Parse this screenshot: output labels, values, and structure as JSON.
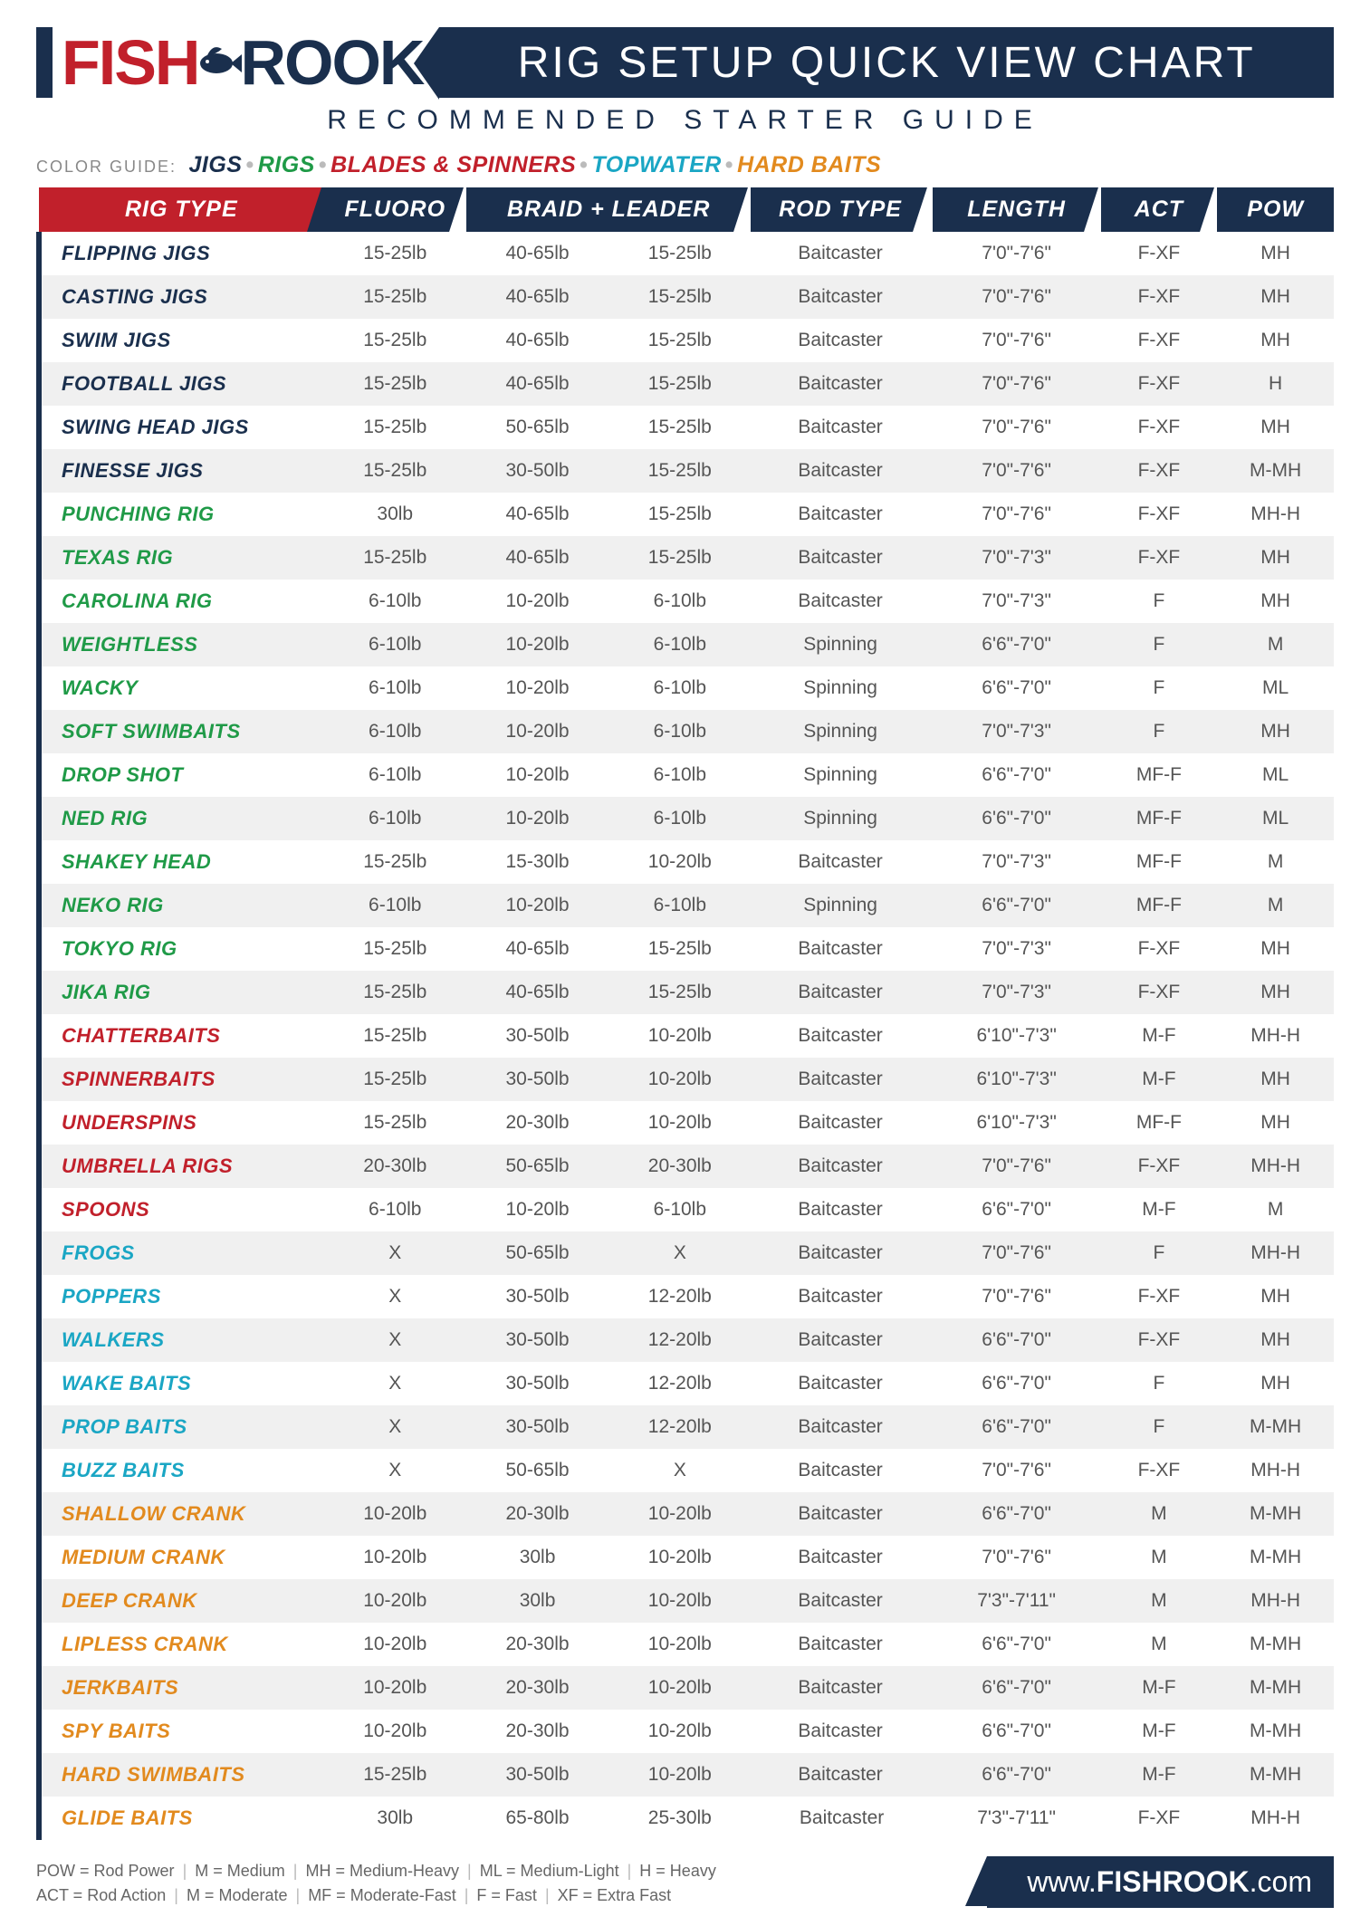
{
  "brand": {
    "part1": "FISH",
    "part2": "ROOK"
  },
  "title": "RIG SETUP QUICK VIEW CHART",
  "subtitle": "RECOMMENDED STARTER GUIDE",
  "colorGuide": {
    "label": "COLOR GUIDE:",
    "items": [
      {
        "text": "JIGS",
        "color": "#1a2f4d"
      },
      {
        "text": "RIGS",
        "color": "#1f9a47"
      },
      {
        "text": "BLADES & SPINNERS",
        "color": "#c1202b"
      },
      {
        "text": "TOPWATER",
        "color": "#1aa6c4"
      },
      {
        "text": "HARD BAITS",
        "color": "#e28a1e"
      }
    ]
  },
  "categoryColors": {
    "jigs": "#1a2f4d",
    "rigs": "#1f9a47",
    "blades": "#c1202b",
    "topwater": "#1aa6c4",
    "hardbaits": "#e28a1e"
  },
  "columns": [
    {
      "key": "name",
      "label": "RIG TYPE",
      "width": "20%"
    },
    {
      "key": "fluoro",
      "label": "FLUORO",
      "width": "11%"
    },
    {
      "key": "braid",
      "label": "BRAID + LEADER",
      "width": "22%",
      "span": 2
    },
    {
      "key": "rod",
      "label": "ROD TYPE",
      "width": "13%"
    },
    {
      "key": "len",
      "label": "LENGTH",
      "width": "12%"
    },
    {
      "key": "act",
      "label": "ACT",
      "width": "9%"
    },
    {
      "key": "pow",
      "label": "POW",
      "width": "9%"
    }
  ],
  "rows": [
    {
      "cat": "jigs",
      "name": "FLIPPING JIGS",
      "fluoro": "15-25lb",
      "braid": "40-65lb",
      "leader": "15-25lb",
      "rod": "Baitcaster",
      "len": "7'0\"-7'6\"",
      "act": "F-XF",
      "pow": "MH"
    },
    {
      "cat": "jigs",
      "name": "CASTING JIGS",
      "fluoro": "15-25lb",
      "braid": "40-65lb",
      "leader": "15-25lb",
      "rod": "Baitcaster",
      "len": "7'0\"-7'6\"",
      "act": "F-XF",
      "pow": "MH"
    },
    {
      "cat": "jigs",
      "name": "SWIM JIGS",
      "fluoro": "15-25lb",
      "braid": "40-65lb",
      "leader": "15-25lb",
      "rod": "Baitcaster",
      "len": "7'0\"-7'6\"",
      "act": "F-XF",
      "pow": "MH"
    },
    {
      "cat": "jigs",
      "name": "FOOTBALL JIGS",
      "fluoro": "15-25lb",
      "braid": "40-65lb",
      "leader": "15-25lb",
      "rod": "Baitcaster",
      "len": "7'0\"-7'6\"",
      "act": "F-XF",
      "pow": "H"
    },
    {
      "cat": "jigs",
      "name": "SWING HEAD JIGS",
      "fluoro": "15-25lb",
      "braid": "50-65lb",
      "leader": "15-25lb",
      "rod": "Baitcaster",
      "len": "7'0\"-7'6\"",
      "act": "F-XF",
      "pow": "MH"
    },
    {
      "cat": "jigs",
      "name": "FINESSE JIGS",
      "fluoro": "15-25lb",
      "braid": "30-50lb",
      "leader": "15-25lb",
      "rod": "Baitcaster",
      "len": "7'0\"-7'6\"",
      "act": "F-XF",
      "pow": "M-MH"
    },
    {
      "cat": "rigs",
      "name": "PUNCHING RIG",
      "fluoro": "30lb",
      "braid": "40-65lb",
      "leader": "15-25lb",
      "rod": "Baitcaster",
      "len": "7'0\"-7'6\"",
      "act": "F-XF",
      "pow": "MH-H"
    },
    {
      "cat": "rigs",
      "name": "TEXAS RIG",
      "fluoro": "15-25lb",
      "braid": "40-65lb",
      "leader": "15-25lb",
      "rod": "Baitcaster",
      "len": "7'0\"-7'3\"",
      "act": "F-XF",
      "pow": "MH"
    },
    {
      "cat": "rigs",
      "name": "CAROLINA RIG",
      "fluoro": "6-10lb",
      "braid": "10-20lb",
      "leader": "6-10lb",
      "rod": "Baitcaster",
      "len": "7'0\"-7'3\"",
      "act": "F",
      "pow": "MH"
    },
    {
      "cat": "rigs",
      "name": "WEIGHTLESS",
      "fluoro": "6-10lb",
      "braid": "10-20lb",
      "leader": "6-10lb",
      "rod": "Spinning",
      "len": "6'6\"-7'0\"",
      "act": "F",
      "pow": "M"
    },
    {
      "cat": "rigs",
      "name": "WACKY",
      "fluoro": "6-10lb",
      "braid": "10-20lb",
      "leader": "6-10lb",
      "rod": "Spinning",
      "len": "6'6\"-7'0\"",
      "act": "F",
      "pow": "ML"
    },
    {
      "cat": "rigs",
      "name": "SOFT SWIMBAITS",
      "fluoro": "6-10lb",
      "braid": "10-20lb",
      "leader": "6-10lb",
      "rod": "Spinning",
      "len": "7'0\"-7'3\"",
      "act": "F",
      "pow": "MH"
    },
    {
      "cat": "rigs",
      "name": "DROP SHOT",
      "fluoro": "6-10lb",
      "braid": "10-20lb",
      "leader": "6-10lb",
      "rod": "Spinning",
      "len": "6'6\"-7'0\"",
      "act": "MF-F",
      "pow": "ML"
    },
    {
      "cat": "rigs",
      "name": "NED RIG",
      "fluoro": "6-10lb",
      "braid": "10-20lb",
      "leader": "6-10lb",
      "rod": "Spinning",
      "len": "6'6\"-7'0\"",
      "act": "MF-F",
      "pow": "ML"
    },
    {
      "cat": "rigs",
      "name": "SHAKEY HEAD",
      "fluoro": "15-25lb",
      "braid": "15-30lb",
      "leader": "10-20lb",
      "rod": "Baitcaster",
      "len": "7'0\"-7'3\"",
      "act": "MF-F",
      "pow": "M"
    },
    {
      "cat": "rigs",
      "name": "NEKO RIG",
      "fluoro": "6-10lb",
      "braid": "10-20lb",
      "leader": "6-10lb",
      "rod": "Spinning",
      "len": "6'6\"-7'0\"",
      "act": "MF-F",
      "pow": "M"
    },
    {
      "cat": "rigs",
      "name": "TOKYO RIG",
      "fluoro": "15-25lb",
      "braid": "40-65lb",
      "leader": "15-25lb",
      "rod": "Baitcaster",
      "len": "7'0\"-7'3\"",
      "act": "F-XF",
      "pow": "MH"
    },
    {
      "cat": "rigs",
      "name": "JIKA RIG",
      "fluoro": "15-25lb",
      "braid": "40-65lb",
      "leader": "15-25lb",
      "rod": "Baitcaster",
      "len": "7'0\"-7'3\"",
      "act": "F-XF",
      "pow": "MH"
    },
    {
      "cat": "blades",
      "name": "CHATTERBAITS",
      "fluoro": "15-25lb",
      "braid": "30-50lb",
      "leader": "10-20lb",
      "rod": "Baitcaster",
      "len": "6'10\"-7'3\"",
      "act": "M-F",
      "pow": "MH-H"
    },
    {
      "cat": "blades",
      "name": "SPINNERBAITS",
      "fluoro": "15-25lb",
      "braid": "30-50lb",
      "leader": "10-20lb",
      "rod": "Baitcaster",
      "len": "6'10\"-7'3\"",
      "act": "M-F",
      "pow": "MH"
    },
    {
      "cat": "blades",
      "name": "UNDERSPINS",
      "fluoro": "15-25lb",
      "braid": "20-30lb",
      "leader": "10-20lb",
      "rod": "Baitcaster",
      "len": "6'10\"-7'3\"",
      "act": "MF-F",
      "pow": "MH"
    },
    {
      "cat": "blades",
      "name": "UMBRELLA RIGS",
      "fluoro": "20-30lb",
      "braid": "50-65lb",
      "leader": "20-30lb",
      "rod": "Baitcaster",
      "len": "7'0\"-7'6\"",
      "act": "F-XF",
      "pow": "MH-H"
    },
    {
      "cat": "blades",
      "name": "SPOONS",
      "fluoro": "6-10lb",
      "braid": "10-20lb",
      "leader": "6-10lb",
      "rod": "Baitcaster",
      "len": "6'6\"-7'0\"",
      "act": "M-F",
      "pow": "M"
    },
    {
      "cat": "topwater",
      "name": "FROGS",
      "fluoro": "X",
      "braid": "50-65lb",
      "leader": "X",
      "rod": "Baitcaster",
      "len": "7'0\"-7'6\"",
      "act": "F",
      "pow": "MH-H"
    },
    {
      "cat": "topwater",
      "name": "POPPERS",
      "fluoro": "X",
      "braid": "30-50lb",
      "leader": "12-20lb",
      "rod": "Baitcaster",
      "len": "7'0\"-7'6\"",
      "act": "F-XF",
      "pow": "MH"
    },
    {
      "cat": "topwater",
      "name": "WALKERS",
      "fluoro": "X",
      "braid": "30-50lb",
      "leader": "12-20lb",
      "rod": "Baitcaster",
      "len": "6'6\"-7'0\"",
      "act": "F-XF",
      "pow": "MH"
    },
    {
      "cat": "topwater",
      "name": "WAKE BAITS",
      "fluoro": "X",
      "braid": "30-50lb",
      "leader": "12-20lb",
      "rod": "Baitcaster",
      "len": "6'6\"-7'0\"",
      "act": "F",
      "pow": "MH"
    },
    {
      "cat": "topwater",
      "name": "PROP BAITS",
      "fluoro": "X",
      "braid": "30-50lb",
      "leader": "12-20lb",
      "rod": "Baitcaster",
      "len": "6'6\"-7'0\"",
      "act": "F",
      "pow": "M-MH"
    },
    {
      "cat": "topwater",
      "name": "BUZZ BAITS",
      "fluoro": "X",
      "braid": "50-65lb",
      "leader": "X",
      "rod": "Baitcaster",
      "len": "7'0\"-7'6\"",
      "act": "F-XF",
      "pow": "MH-H"
    },
    {
      "cat": "hardbaits",
      "name": "SHALLOW CRANK",
      "fluoro": "10-20lb",
      "braid": "20-30lb",
      "leader": "10-20lb",
      "rod": "Baitcaster",
      "len": "6'6\"-7'0\"",
      "act": "M",
      "pow": "M-MH"
    },
    {
      "cat": "hardbaits",
      "name": "MEDIUM CRANK",
      "fluoro": "10-20lb",
      "braid": "30lb",
      "leader": "10-20lb",
      "rod": "Baitcaster",
      "len": "7'0\"-7'6\"",
      "act": "M",
      "pow": "M-MH"
    },
    {
      "cat": "hardbaits",
      "name": "DEEP CRANK",
      "fluoro": "10-20lb",
      "braid": "30lb",
      "leader": "10-20lb",
      "rod": "Baitcaster",
      "len": "7'3\"-7'11\"",
      "act": "M",
      "pow": "MH-H"
    },
    {
      "cat": "hardbaits",
      "name": "LIPLESS CRANK",
      "fluoro": "10-20lb",
      "braid": "20-30lb",
      "leader": "10-20lb",
      "rod": "Baitcaster",
      "len": "6'6\"-7'0\"",
      "act": "M",
      "pow": "M-MH"
    },
    {
      "cat": "hardbaits",
      "name": "JERKBAITS",
      "fluoro": "10-20lb",
      "braid": "20-30lb",
      "leader": "10-20lb",
      "rod": "Baitcaster",
      "len": "6'6\"-7'0\"",
      "act": "M-F",
      "pow": "M-MH"
    },
    {
      "cat": "hardbaits",
      "name": "SPY BAITS",
      "fluoro": "10-20lb",
      "braid": "20-30lb",
      "leader": "10-20lb",
      "rod": "Baitcaster",
      "len": "6'6\"-7'0\"",
      "act": "M-F",
      "pow": "M-MH"
    },
    {
      "cat": "hardbaits",
      "name": "HARD SWIMBAITS",
      "fluoro": "15-25lb",
      "braid": "30-50lb",
      "leader": "10-20lb",
      "rod": "Baitcaster",
      "len": "6'6\"-7'0\"",
      "act": "M-F",
      "pow": "M-MH"
    },
    {
      "cat": "hardbaits",
      "name": "GLIDE BAITS",
      "fluoro": "30lb",
      "braid": "65-80lb",
      "leader": "25-30lb",
      "rod": "Baitcaster",
      "len": "7'3\"-7'11\"",
      "act": "F-XF",
      "pow": "MH-H"
    }
  ],
  "legend": {
    "line1": [
      "POW = Rod Power",
      "M = Medium",
      "MH = Medium-Heavy",
      "ML = Medium-Light",
      "H = Heavy"
    ],
    "line2": [
      "ACT = Rod Action",
      "M = Moderate",
      "MF = Moderate-Fast",
      "F = Fast",
      "XF = Extra Fast"
    ]
  },
  "url": {
    "prefix": "www.",
    "brand": "FISHROOK",
    "suffix": ".com"
  }
}
